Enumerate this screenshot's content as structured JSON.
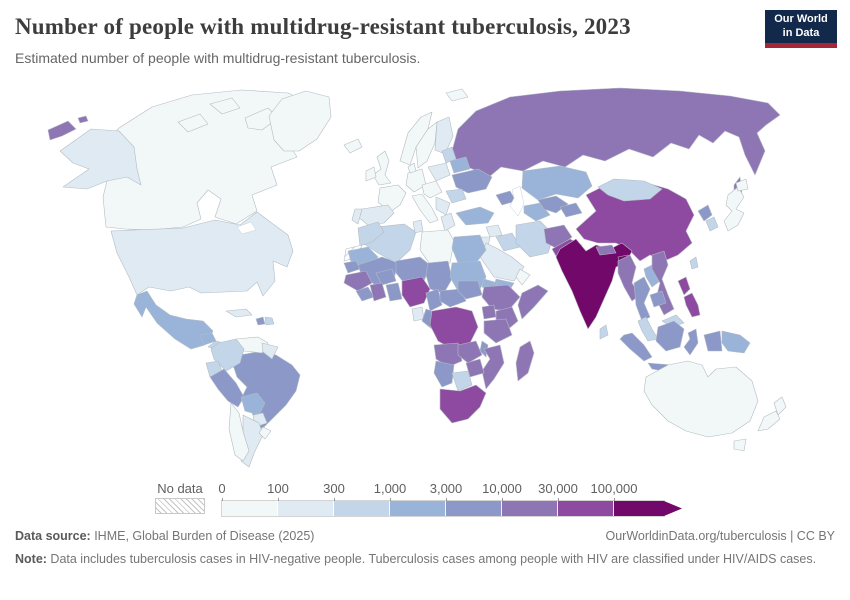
{
  "header": {
    "title": "Number of people with multidrug-resistant tuberculosis, 2023",
    "subtitle": "Estimated number of people with multidrug-resistant tuberculosis.",
    "logo": {
      "line1": "Our World",
      "line2": "in Data",
      "bg_color": "#12294b",
      "accent_color": "#a52639"
    }
  },
  "legend": {
    "no_data_label": "No data",
    "ticks": [
      "0",
      "100",
      "300",
      "1,000",
      "3,000",
      "10,000",
      "30,000",
      "100,000"
    ]
  },
  "footer": {
    "source_label": "Data source:",
    "source_text": " IHME, Global Burden of Disease (2025)",
    "rights": "OurWorldinData.org/tuberculosis | CC BY",
    "note_label": "Note:",
    "note_text": " Data includes tuberculosis cases in HIV-negative people. Tuberculosis cases among people with HIV are classified under HIV/AIDS cases."
  },
  "chart_data": {
    "type": "heatmap",
    "subtype": "choropleth-world-map",
    "title": "Number of people with multidrug-resistant tuberculosis, 2023",
    "year": 2023,
    "unit": "people",
    "scale": {
      "kind": "log-binned",
      "open_ended_max": true,
      "no_data_style": "hatched"
    },
    "bins": [
      {
        "id": 1,
        "range": "0–100",
        "color": "#f2f7f7"
      },
      {
        "id": 2,
        "range": "100–300",
        "color": "#dfeaf2"
      },
      {
        "id": 3,
        "range": "300–1,000",
        "color": "#c3d6e9"
      },
      {
        "id": 4,
        "range": "1,000–3,000",
        "color": "#9ab4d9"
      },
      {
        "id": 5,
        "range": "3,000–10,000",
        "color": "#8b98c8"
      },
      {
        "id": 6,
        "range": "10,000–30,000",
        "color": "#8e76b5"
      },
      {
        "id": 7,
        "range": "30,000–100,000",
        "color": "#8e4aa0"
      },
      {
        "id": 8,
        "range": "100,000+",
        "color": "#71086a"
      }
    ],
    "regions": {
      "canada": 1,
      "greenland": 1,
      "alaska": 2,
      "usa": 2,
      "mexico": 4,
      "guatemala": 4,
      "central-america": 3,
      "cuba": 2,
      "haiti": 5,
      "dominican-republic": 3,
      "colombia": 3,
      "venezuela": 1,
      "guyana-suriname": 2,
      "ecuador": 3,
      "peru": 5,
      "brazil": 5,
      "bolivia": 4,
      "paraguay": 2,
      "chile": 1,
      "argentina": 2,
      "uruguay": 1,
      "iceland": 1,
      "uk": 1,
      "ireland": 1,
      "norway": 1,
      "sweden": 1,
      "finland": 2,
      "denmark": 1,
      "germany": 1,
      "france": 1,
      "spain": 2,
      "portugal": 2,
      "central-europe": 1,
      "italy": 1,
      "poland": 2,
      "baltics": 3,
      "belarus": 4,
      "ukraine": 5,
      "romania": 3,
      "balkans": 2,
      "greece": 2,
      "svalbard": 1,
      "russia": 6,
      "kazakhstan": 4,
      "caucasus": 5,
      "turkey": 4,
      "syria": 2,
      "jordan": 2,
      "iraq": 3,
      "iran": 3,
      "saudi-arabia": 2,
      "yemen": 4,
      "oman": 1,
      "turkmenistan": 4,
      "uzbekistan": 5,
      "kyrgyzstan-tajikistan": 5,
      "afghanistan": 6,
      "pakistan": 7,
      "india": 8,
      "nepal": 6,
      "bangladesh": 8,
      "sri-lanka": 3,
      "china": 7,
      "mongolia": 3,
      "north-korea": 5,
      "south-korea": 3,
      "japan": 1,
      "taiwan": 3,
      "myanmar": 6,
      "laos": 4,
      "thailand": 5,
      "vietnam": 6,
      "cambodia": 5,
      "malaysia": 3,
      "indonesia": 5,
      "philippines": 7,
      "papua-new-guinea": 4,
      "morocco": 3,
      "western-sahara": "no-data",
      "algeria": 3,
      "tunisia": 2,
      "libya": 1,
      "egypt": 4,
      "mauritania": 4,
      "senegal": 5,
      "mali": 5,
      "burkina-faso": 5,
      "niger": 5,
      "chad": 5,
      "sudan": 4,
      "eritrea": 4,
      "guinea-region": 6,
      "sierra-leone-liberia": 5,
      "cote-divoire": 6,
      "ghana-togo-benin": 5,
      "nigeria": 7,
      "cameroon": 5,
      "central-african-republic": 5,
      "south-sudan": 5,
      "ethiopia": 6,
      "somalia": 6,
      "uganda": 6,
      "kenya": 6,
      "gabon": 2,
      "congo": 5,
      "dr-congo": 7,
      "tanzania": 6,
      "angola": 6,
      "zambia": 6,
      "malawi": 5,
      "mozambique": 6,
      "zimbabwe": 6,
      "namibia": 5,
      "botswana": 3,
      "south-africa": 7,
      "madagascar": 6,
      "australia": 1,
      "new-zealand": 1
    }
  }
}
